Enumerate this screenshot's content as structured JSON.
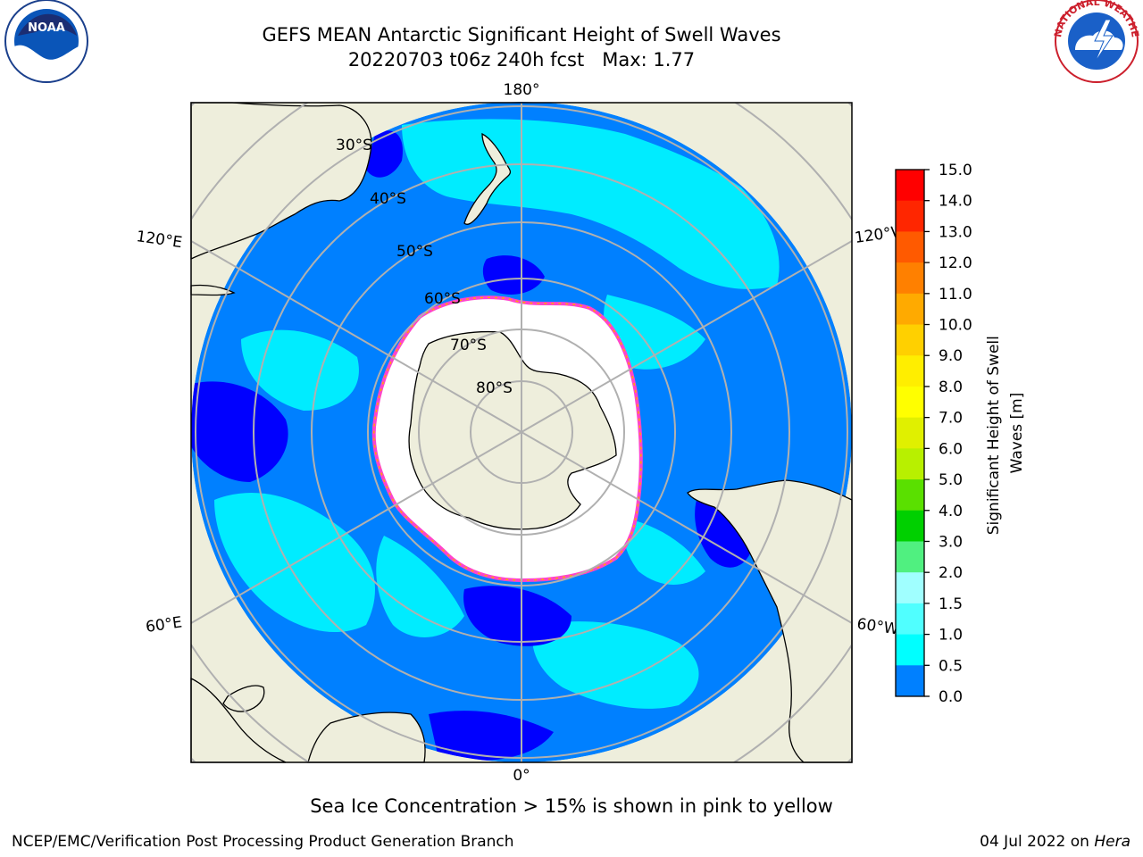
{
  "title": {
    "line1": "GEFS MEAN Antarctic Significant Height of Swell Waves",
    "line2": "20220703 t06z 240h fcst   Max: 1.77"
  },
  "map": {
    "longitude_labels": {
      "top": "180°",
      "bottom": "0°",
      "left_upper": "120°E",
      "left_lower": "60°E",
      "right_upper": "120°W",
      "right_lower": "60°W"
    },
    "latitude_labels": [
      "30°S",
      "40°S",
      "50°S",
      "60°S",
      "70°S",
      "80°S"
    ],
    "colors": {
      "land": "#eeeedc",
      "ocean_high": "#00ffff",
      "ocean_mid": "#0080ff",
      "ocean_low": "#0000ff",
      "sea_ice": "#ffffff",
      "ice_edge": "#ff44cc",
      "grid": "#b0b0b0"
    }
  },
  "colorbar": {
    "label_line1": "Significant Height of Swell",
    "label_line2": "Waves [m]",
    "ticks": [
      "15.0",
      "14.0",
      "13.0",
      "12.0",
      "11.0",
      "10.0",
      "9.0",
      "8.0",
      "7.0",
      "6.0",
      "5.0",
      "4.0",
      "3.0",
      "2.0",
      "1.5",
      "1.0",
      "0.5",
      "0.0"
    ],
    "colors_top_to_bottom": [
      "#ff0000",
      "#ff2600",
      "#ff5a00",
      "#ff8000",
      "#ffaa00",
      "#ffd000",
      "#ffee00",
      "#ffff00",
      "#e0f000",
      "#b8f000",
      "#5ae000",
      "#00d000",
      "#50f080",
      "#a0ffff",
      "#50ffff",
      "#00ffff",
      "#0080ff",
      "#0000ff"
    ]
  },
  "caption": "Sea Ice Concentration > 15% is shown in pink to yellow",
  "footer": {
    "left": "NCEP/EMC/Verification Post Processing Product Generation Branch",
    "date": "04 Jul 2022 on ",
    "host": "Hera"
  },
  "logos": {
    "left_text": "NOAA",
    "right_ring": "NATIONAL WEATHER SERVICE"
  }
}
